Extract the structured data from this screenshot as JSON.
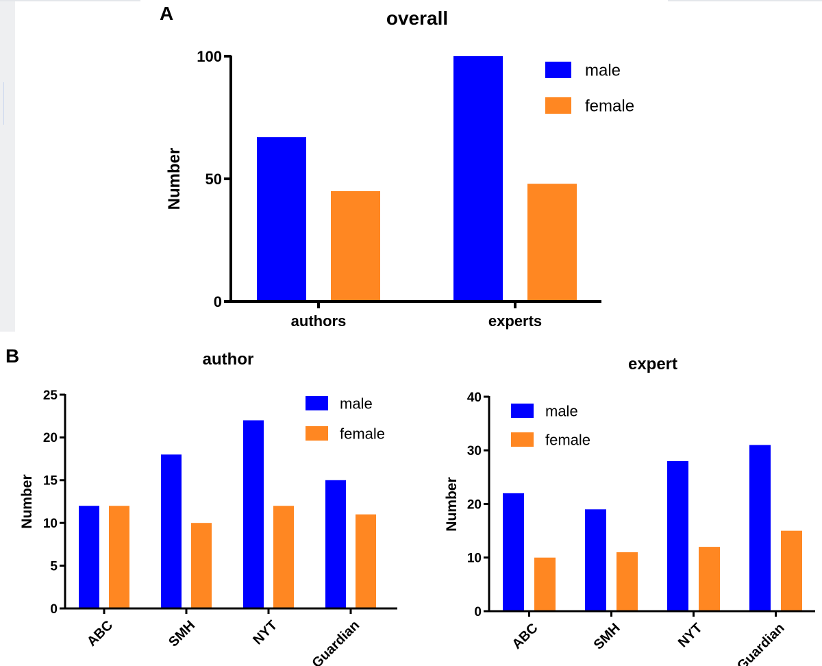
{
  "panels": {
    "a_label": "A",
    "b_label": "B"
  },
  "colors": {
    "male": "#0000ff",
    "female": "#ff8722"
  },
  "chart_data": [
    {
      "type": "bar",
      "title": "overall",
      "ylabel": "Number",
      "categories": [
        "authors",
        "experts"
      ],
      "series": [
        {
          "name": "male",
          "values": [
            67,
            100
          ]
        },
        {
          "name": "female",
          "values": [
            45,
            48
          ]
        }
      ],
      "ylim": [
        0,
        100
      ],
      "yticks": [
        0,
        50,
        100
      ],
      "legend": "top-right"
    },
    {
      "type": "bar",
      "title": "author",
      "ylabel": "Number",
      "categories": [
        "ABC",
        "SMH",
        "NYT",
        "Guardian"
      ],
      "series": [
        {
          "name": "male",
          "values": [
            12,
            18,
            22,
            15
          ]
        },
        {
          "name": "female",
          "values": [
            12,
            10,
            12,
            11
          ]
        }
      ],
      "ylim": [
        0,
        25
      ],
      "yticks": [
        0,
        5,
        10,
        15,
        20,
        25
      ],
      "legend": "top-right"
    },
    {
      "type": "bar",
      "title": "expert",
      "ylabel": "Number",
      "categories": [
        "ABC",
        "SMH",
        "NYT",
        "Guardian"
      ],
      "series": [
        {
          "name": "male",
          "values": [
            22,
            19,
            28,
            31
          ]
        },
        {
          "name": "female",
          "values": [
            10,
            11,
            12,
            15
          ]
        }
      ],
      "ylim": [
        0,
        40
      ],
      "yticks": [
        0,
        10,
        20,
        30,
        40
      ],
      "legend": "top-left"
    }
  ]
}
